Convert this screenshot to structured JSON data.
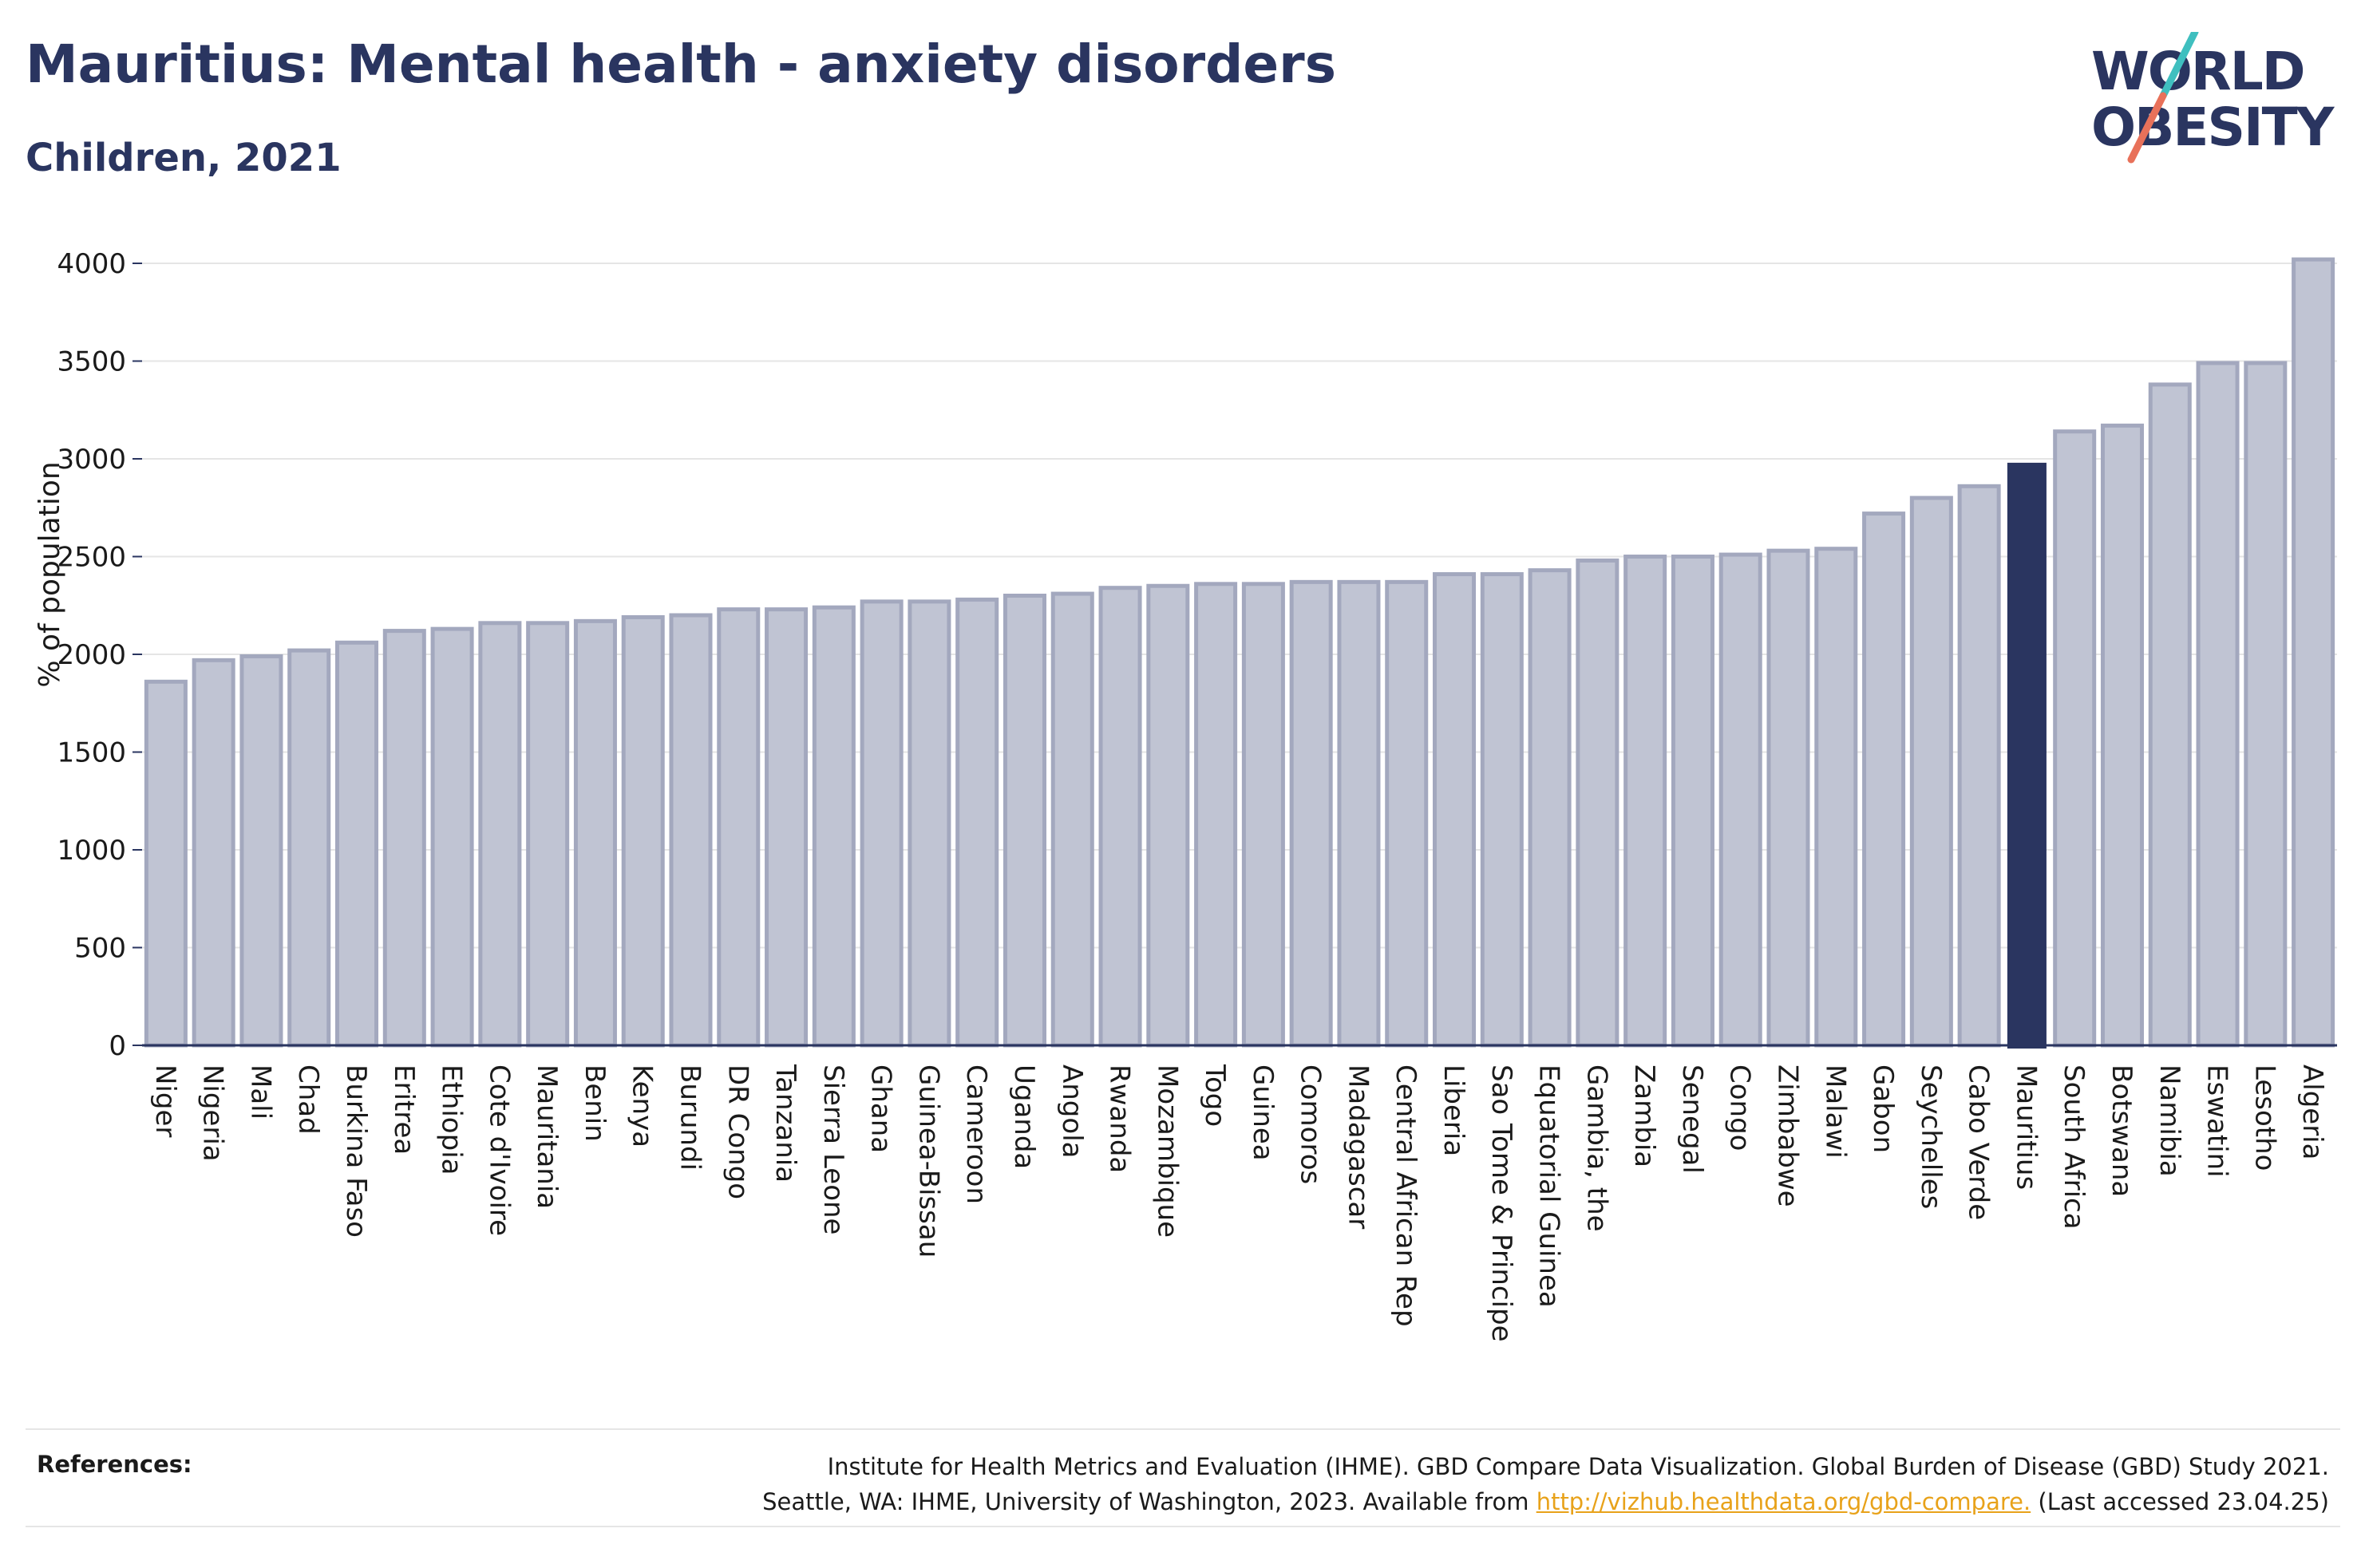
{
  "header": {
    "title": "Mauritius: Mental health - anxiety disorders",
    "subtitle": "Children, 2021"
  },
  "logo": {
    "line1": "WORLD",
    "line2": "OBESITY",
    "accent_teal": "#3fbfbf",
    "accent_red": "#e8715a"
  },
  "colors": {
    "bar": "#c0c4d3",
    "bar_edge": "#a3a8be",
    "highlight": "#2a3560",
    "grid": "#e5e5e5",
    "axis": "#2a3560"
  },
  "chart_data": {
    "type": "bar",
    "ylabel": "% of population",
    "ylim": [
      0,
      4100
    ],
    "yticks": [
      0,
      500,
      1000,
      1500,
      2000,
      2500,
      3000,
      3500,
      4000
    ],
    "grid": true,
    "highlight": "Mauritius",
    "categories": [
      "Niger",
      "Nigeria",
      "Mali",
      "Chad",
      "Burkina Faso",
      "Eritrea",
      "Ethiopia",
      "Cote d'Ivoire",
      "Mauritania",
      "Benin",
      "Kenya",
      "Burundi",
      "DR Congo",
      "Tanzania",
      "Sierra Leone",
      "Ghana",
      "Guinea-Bissau",
      "Cameroon",
      "Uganda",
      "Angola",
      "Rwanda",
      "Mozambique",
      "Togo",
      "Guinea",
      "Comoros",
      "Madagascar",
      "Central African Rep",
      "Liberia",
      "Sao Tome & Principe",
      "Equatorial Guinea",
      "Gambia, the",
      "Zambia",
      "Senegal",
      "Congo",
      "Zimbabwe",
      "Malawi",
      "Gabon",
      "Seychelles",
      "Cabo Verde",
      "Mauritius",
      "South Africa",
      "Botswana",
      "Namibia",
      "Eswatini",
      "Lesotho",
      "Algeria"
    ],
    "values": [
      1860,
      1970,
      1990,
      2020,
      2060,
      2120,
      2130,
      2160,
      2160,
      2170,
      2190,
      2200,
      2230,
      2230,
      2240,
      2270,
      2270,
      2280,
      2300,
      2310,
      2340,
      2350,
      2360,
      2360,
      2370,
      2370,
      2370,
      2410,
      2410,
      2430,
      2480,
      2500,
      2500,
      2510,
      2530,
      2540,
      2720,
      2800,
      2860,
      2980,
      3140,
      3170,
      3380,
      3490,
      3490,
      4020
    ]
  },
  "references": {
    "label": "References:",
    "line1": "Institute for Health Metrics and Evaluation (IHME). GBD Compare Data Visualization. Global Burden of Disease (GBD) Study 2021.",
    "line2_pre": "Seattle, WA: IHME, University of Washington, 2023. Available from ",
    "link": "http://vizhub.healthdata.org/gbd-compare.",
    "line2_post": " (Last accessed 23.04.25)"
  }
}
